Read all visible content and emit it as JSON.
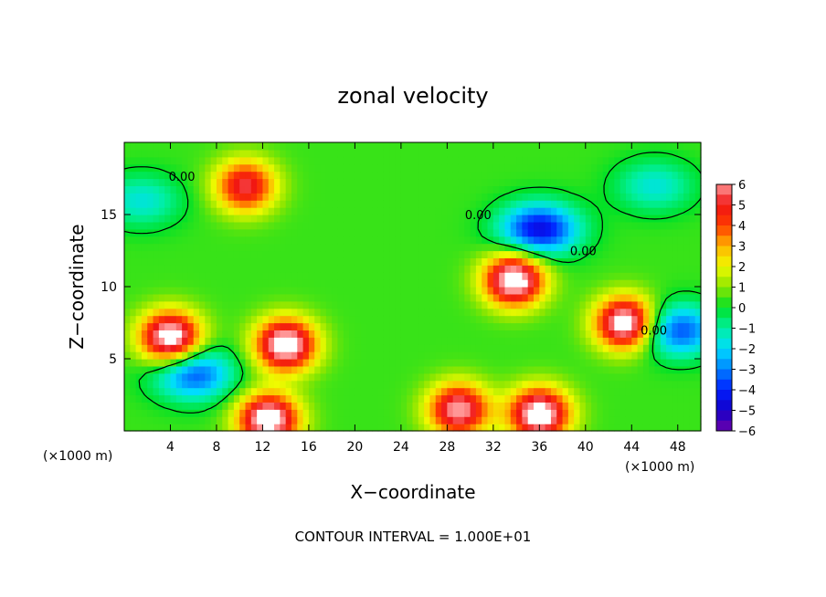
{
  "chart_data": {
    "type": "heatmap",
    "title": "zonal velocity",
    "xlabel": "X−coordinate",
    "ylabel": "Z−coordinate",
    "x_unit_left": "(×1000 m)",
    "x_unit_right": "(×1000 m)",
    "footer": "CONTOUR INTERVAL = 1.000E+01",
    "xlim": [
      0,
      50
    ],
    "ylim": [
      0,
      20
    ],
    "x_ticks": [
      4,
      8,
      12,
      16,
      20,
      24,
      28,
      32,
      36,
      40,
      44,
      48
    ],
    "x_tick_labels": [
      "4",
      "8",
      "12",
      "16",
      "20",
      "24",
      "28",
      "32",
      "36",
      "40",
      "44",
      "48"
    ],
    "y_ticks": [
      5,
      10,
      15
    ],
    "y_tick_labels": [
      "5",
      "10",
      "15"
    ],
    "colorbar": {
      "min": -6,
      "max": 6,
      "ticks": [
        6,
        5,
        4,
        3,
        2,
        1,
        0,
        -1,
        -2,
        -3,
        -4,
        -5,
        -6
      ],
      "tick_labels": [
        "6",
        "5",
        "4",
        "3",
        "2",
        "1",
        "0",
        "−1",
        "−2",
        "−3",
        "−4",
        "−5",
        "−6"
      ]
    },
    "contour_labels": [
      "0.00",
      "0.00",
      "0.00",
      "0.00"
    ],
    "features": [
      {
        "kind": "max",
        "x": 10.5,
        "z": 17,
        "value": 5
      },
      {
        "kind": "max",
        "x": 14,
        "z": 6,
        "value": 7
      },
      {
        "kind": "max",
        "x": 4,
        "z": 6.5,
        "value": 7
      },
      {
        "kind": "max",
        "x": 43.5,
        "z": 7.5,
        "value": 7
      },
      {
        "kind": "max",
        "x": 29,
        "z": 1.5,
        "value": 6
      },
      {
        "kind": "max",
        "x": 36,
        "z": 1.2,
        "value": 7
      },
      {
        "kind": "max",
        "x": 12.5,
        "z": 0.8,
        "value": 7
      },
      {
        "kind": "max",
        "x": 33.8,
        "z": 10.5,
        "value": 7
      },
      {
        "kind": "min",
        "x": 36,
        "z": 14,
        "value": -5
      },
      {
        "kind": "min",
        "x": 46,
        "z": 17,
        "value": -2
      },
      {
        "kind": "min",
        "x": 1.5,
        "z": 16,
        "value": -2
      },
      {
        "kind": "min",
        "x": 6,
        "z": 4,
        "value": -4
      },
      {
        "kind": "min",
        "x": 48,
        "z": 7,
        "value": -4
      }
    ]
  }
}
